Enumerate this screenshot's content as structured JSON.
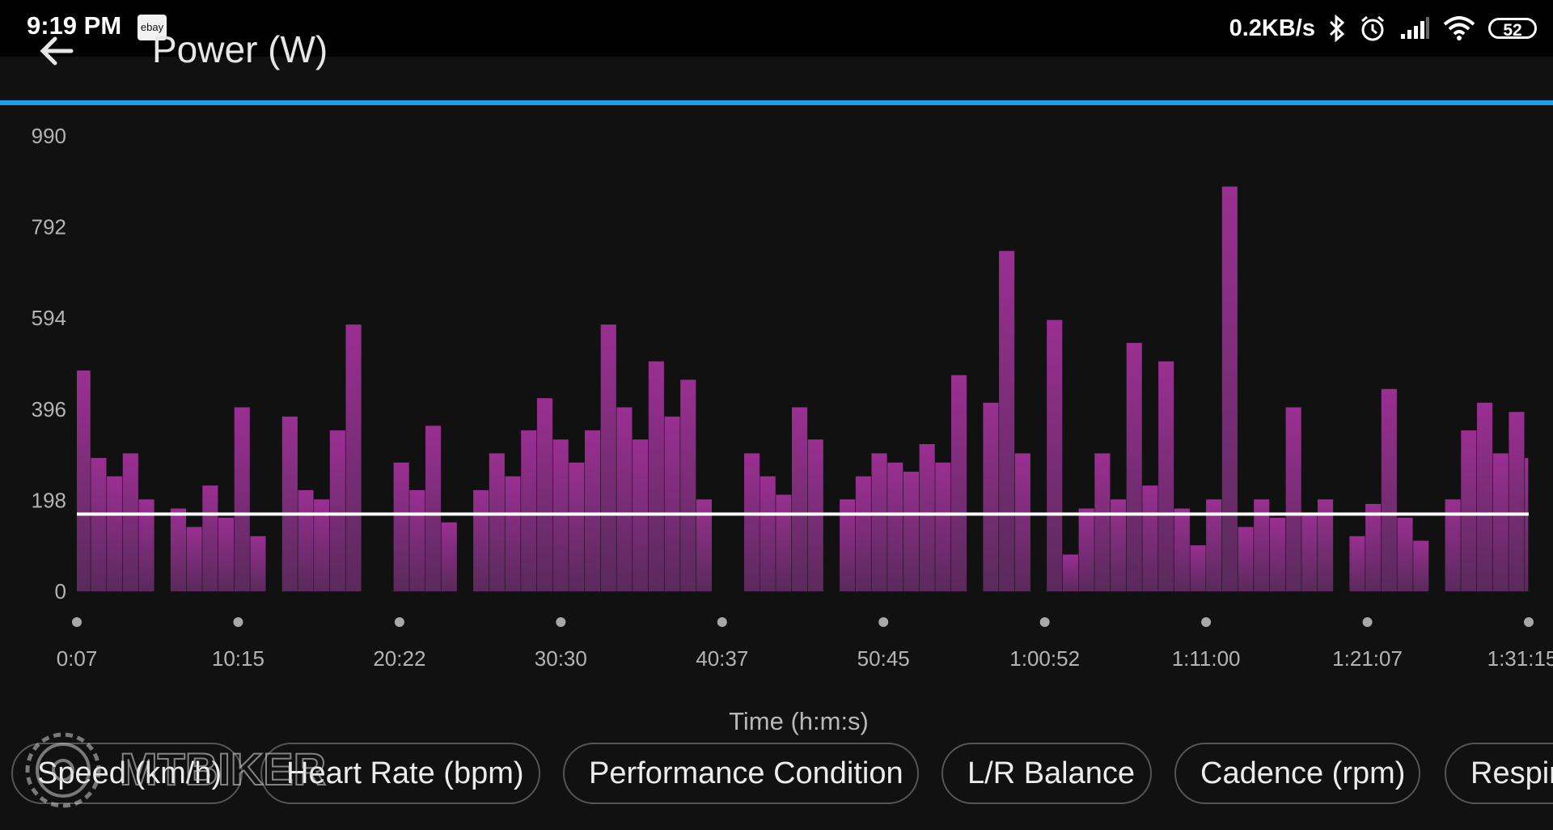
{
  "status_bar": {
    "time": "9:19 PM",
    "notification_app": "ebay",
    "net_speed": "0.2KB/s",
    "battery": "52",
    "icons": [
      "bluetooth-icon",
      "alarm-icon",
      "signal-icon",
      "wifi-icon",
      "battery-icon"
    ]
  },
  "header": {
    "title": "Power (W)",
    "back_icon": "back-arrow-icon"
  },
  "colors": {
    "accent": "#1aa3e8",
    "series": "#8a2e85",
    "average_line": "#ffffff",
    "background": "#111111"
  },
  "chart_data": {
    "type": "area",
    "title": "Power (W)",
    "xlabel": "Time (h:m:s)",
    "ylabel": "",
    "ylim": [
      0,
      990
    ],
    "y_ticks": [
      "0",
      "198",
      "396",
      "594",
      "792",
      "990"
    ],
    "x_ticks": [
      "0:07",
      "10:15",
      "20:22",
      "30:30",
      "40:37",
      "50:45",
      "1:00:52",
      "1:11:00",
      "1:21:07",
      "1:31:15"
    ],
    "x_range_seconds": [
      7,
      5475
    ],
    "average_line": 168,
    "series": [
      {
        "name": "Power",
        "times_seconds": [
          7,
          60,
          120,
          180,
          240,
          300,
          360,
          420,
          480,
          540,
          600,
          660,
          720,
          780,
          840,
          900,
          960,
          1020,
          1080,
          1140,
          1200,
          1260,
          1320,
          1380,
          1440,
          1500,
          1560,
          1620,
          1680,
          1740,
          1800,
          1860,
          1920,
          1980,
          2040,
          2100,
          2160,
          2220,
          2280,
          2340,
          2400,
          2460,
          2520,
          2580,
          2640,
          2700,
          2760,
          2820,
          2880,
          2940,
          3000,
          3060,
          3120,
          3180,
          3240,
          3300,
          3360,
          3420,
          3480,
          3540,
          3600,
          3660,
          3720,
          3780,
          3840,
          3900,
          3960,
          4020,
          4080,
          4140,
          4200,
          4260,
          4320,
          4380,
          4440,
          4500,
          4560,
          4620,
          4680,
          4740,
          4800,
          4860,
          4920,
          4980,
          5040,
          5100,
          5160,
          5220,
          5280,
          5340,
          5400,
          5460
        ],
        "values": [
          480,
          290,
          250,
          300,
          200,
          0,
          180,
          140,
          230,
          160,
          400,
          120,
          0,
          380,
          220,
          200,
          350,
          580,
          0,
          0,
          280,
          220,
          360,
          150,
          0,
          220,
          300,
          250,
          350,
          420,
          330,
          280,
          350,
          580,
          400,
          330,
          500,
          380,
          460,
          200,
          0,
          0,
          300,
          250,
          210,
          400,
          330,
          0,
          200,
          250,
          300,
          280,
          260,
          320,
          280,
          470,
          0,
          410,
          740,
          300,
          0,
          590,
          80,
          180,
          300,
          200,
          540,
          230,
          500,
          180,
          100,
          200,
          880,
          140,
          200,
          160,
          400,
          170,
          200,
          0,
          120,
          190,
          440,
          160,
          110,
          0,
          200,
          350,
          410,
          300,
          390,
          290
        ]
      }
    ]
  },
  "metric_tabs": [
    "Speed (km/h)",
    "Heart Rate (bpm)",
    "Performance Condition",
    "L/R Balance",
    "Cadence (rpm)",
    "Respiration Rate"
  ],
  "watermark": {
    "text": "MTBIKER"
  }
}
